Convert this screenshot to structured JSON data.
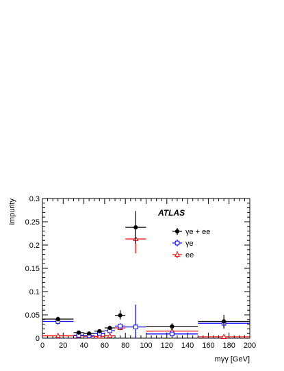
{
  "chart_data": {
    "type": "scatter",
    "title": "",
    "xlabel": "mγγ [GeV]",
    "ylabel": "impurity",
    "xlim": [
      0,
      200
    ],
    "ylim": [
      0,
      0.3
    ],
    "xticks": [
      0,
      20,
      40,
      60,
      80,
      100,
      120,
      140,
      160,
      180,
      200
    ],
    "yticks": [
      0,
      0.05,
      0.1,
      0.15,
      0.2,
      0.25,
      0.3
    ],
    "xtick_labels": [
      "0",
      "20",
      "40",
      "60",
      "80",
      "100",
      "120",
      "140",
      "160",
      "180",
      "200"
    ],
    "ytick_labels": [
      "0",
      "0.05",
      "0.1",
      "0.15",
      "0.2",
      "0.25",
      "0.3"
    ],
    "grid": false,
    "legend_position": "top-right",
    "annotations": [
      "ATLAS"
    ],
    "series": [
      {
        "name": "γe + ee",
        "marker": "filled-circle",
        "color": "#000000",
        "points": [
          {
            "x": 15,
            "xlo": 0,
            "xhi": 30,
            "y": 0.041,
            "ylo": 0.036,
            "yhi": 0.046
          },
          {
            "x": 35,
            "xlo": 30,
            "xhi": 40,
            "y": 0.012,
            "ylo": 0.009,
            "yhi": 0.015
          },
          {
            "x": 45,
            "xlo": 40,
            "xhi": 50,
            "y": 0.01,
            "ylo": 0.008,
            "yhi": 0.013
          },
          {
            "x": 55,
            "xlo": 50,
            "xhi": 60,
            "y": 0.015,
            "ylo": 0.012,
            "yhi": 0.018
          },
          {
            "x": 65,
            "xlo": 60,
            "xhi": 70,
            "y": 0.022,
            "ylo": 0.018,
            "yhi": 0.027
          },
          {
            "x": 75,
            "xlo": 70,
            "xhi": 80,
            "y": 0.049,
            "ylo": 0.04,
            "yhi": 0.06
          },
          {
            "x": 90,
            "xlo": 80,
            "xhi": 100,
            "y": 0.238,
            "ylo": 0.203,
            "yhi": 0.273
          },
          {
            "x": 125,
            "xlo": 100,
            "xhi": 150,
            "y": 0.025,
            "ylo": 0.017,
            "yhi": 0.032
          },
          {
            "x": 175,
            "xlo": 150,
            "xhi": 200,
            "y": 0.036,
            "ylo": 0.022,
            "yhi": 0.05
          }
        ]
      },
      {
        "name": "γe",
        "marker": "open-square",
        "color": "#0000ff",
        "points": [
          {
            "x": 15,
            "xlo": 0,
            "xhi": 30,
            "y": 0.036,
            "ylo": 0.029,
            "yhi": 0.043
          },
          {
            "x": 35,
            "xlo": 30,
            "xhi": 40,
            "y": 0.006,
            "ylo": 0.003,
            "yhi": 0.009
          },
          {
            "x": 45,
            "xlo": 40,
            "xhi": 50,
            "y": 0.005,
            "ylo": 0.003,
            "yhi": 0.007
          },
          {
            "x": 55,
            "xlo": 50,
            "xhi": 60,
            "y": 0.01,
            "ylo": 0.007,
            "yhi": 0.013
          },
          {
            "x": 65,
            "xlo": 60,
            "xhi": 70,
            "y": 0.016,
            "ylo": 0.012,
            "yhi": 0.02
          },
          {
            "x": 75,
            "xlo": 70,
            "xhi": 80,
            "y": 0.026,
            "ylo": 0.02,
            "yhi": 0.032
          },
          {
            "x": 90,
            "xlo": 80,
            "xhi": 100,
            "y": 0.024,
            "ylo": 0.0,
            "yhi": 0.072
          },
          {
            "x": 125,
            "xlo": 100,
            "xhi": 150,
            "y": 0.009,
            "ylo": 0.004,
            "yhi": 0.014
          },
          {
            "x": 175,
            "xlo": 150,
            "xhi": 200,
            "y": 0.032,
            "ylo": 0.02,
            "yhi": 0.045
          }
        ]
      },
      {
        "name": "ee",
        "marker": "open-triangle",
        "color": "#ff0000",
        "points": [
          {
            "x": 15,
            "xlo": 0,
            "xhi": 30,
            "y": 0.005,
            "ylo": 0.003,
            "yhi": 0.007
          },
          {
            "x": 35,
            "xlo": 30,
            "xhi": 40,
            "y": 0.005,
            "ylo": 0.003,
            "yhi": 0.007
          },
          {
            "x": 45,
            "xlo": 40,
            "xhi": 50,
            "y": 0.004,
            "ylo": 0.002,
            "yhi": 0.006
          },
          {
            "x": 55,
            "xlo": 50,
            "xhi": 60,
            "y": 0.004,
            "ylo": 0.002,
            "yhi": 0.006
          },
          {
            "x": 65,
            "xlo": 60,
            "xhi": 70,
            "y": 0.005,
            "ylo": 0.003,
            "yhi": 0.007
          },
          {
            "x": 75,
            "xlo": 70,
            "xhi": 80,
            "y": 0.022,
            "ylo": 0.017,
            "yhi": 0.027
          },
          {
            "x": 90,
            "xlo": 80,
            "xhi": 100,
            "y": 0.213,
            "ylo": 0.182,
            "yhi": 0.24
          },
          {
            "x": 125,
            "xlo": 100,
            "xhi": 150,
            "y": 0.015,
            "ylo": 0.01,
            "yhi": 0.02
          },
          {
            "x": 175,
            "xlo": 150,
            "xhi": 200,
            "y": 0.003,
            "ylo": 0.001,
            "yhi": 0.005
          }
        ]
      }
    ]
  }
}
